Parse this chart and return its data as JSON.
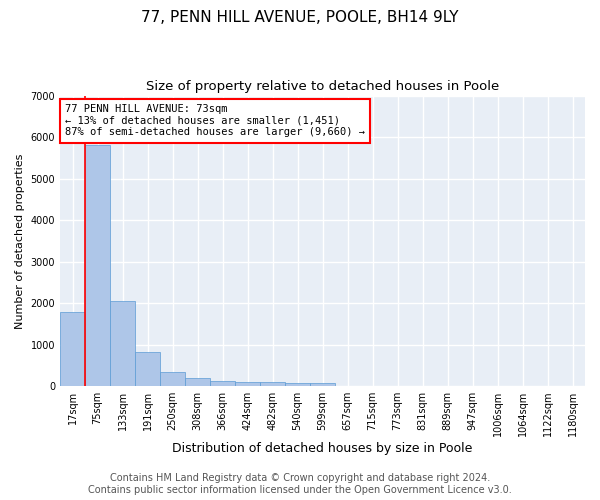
{
  "title": "77, PENN HILL AVENUE, POOLE, BH14 9LY",
  "subtitle": "Size of property relative to detached houses in Poole",
  "xlabel": "Distribution of detached houses by size in Poole",
  "ylabel": "Number of detached properties",
  "bar_labels": [
    "17sqm",
    "75sqm",
    "133sqm",
    "191sqm",
    "250sqm",
    "308sqm",
    "366sqm",
    "424sqm",
    "482sqm",
    "540sqm",
    "599sqm",
    "657sqm",
    "715sqm",
    "773sqm",
    "831sqm",
    "889sqm",
    "947sqm",
    "1006sqm",
    "1064sqm",
    "1122sqm",
    "1180sqm"
  ],
  "bar_values": [
    1780,
    5800,
    2060,
    820,
    340,
    185,
    120,
    110,
    105,
    75,
    70,
    0,
    0,
    0,
    0,
    0,
    0,
    0,
    0,
    0,
    0
  ],
  "bar_color": "#aec6e8",
  "bar_edge_color": "#5b9bd5",
  "annotation_text": "77 PENN HILL AVENUE: 73sqm\n← 13% of detached houses are smaller (1,451)\n87% of semi-detached houses are larger (9,660) →",
  "annotation_box_color": "white",
  "annotation_box_edge_color": "red",
  "line_color": "red",
  "ylim": [
    0,
    7000
  ],
  "yticks": [
    0,
    1000,
    2000,
    3000,
    4000,
    5000,
    6000,
    7000
  ],
  "background_color": "#e8eef6",
  "grid_color": "white",
  "footer_line1": "Contains HM Land Registry data © Crown copyright and database right 2024.",
  "footer_line2": "Contains public sector information licensed under the Open Government Licence v3.0.",
  "title_fontsize": 11,
  "subtitle_fontsize": 9.5,
  "xlabel_fontsize": 9,
  "ylabel_fontsize": 8,
  "tick_fontsize": 7,
  "footer_fontsize": 7,
  "annot_fontsize": 7.5
}
